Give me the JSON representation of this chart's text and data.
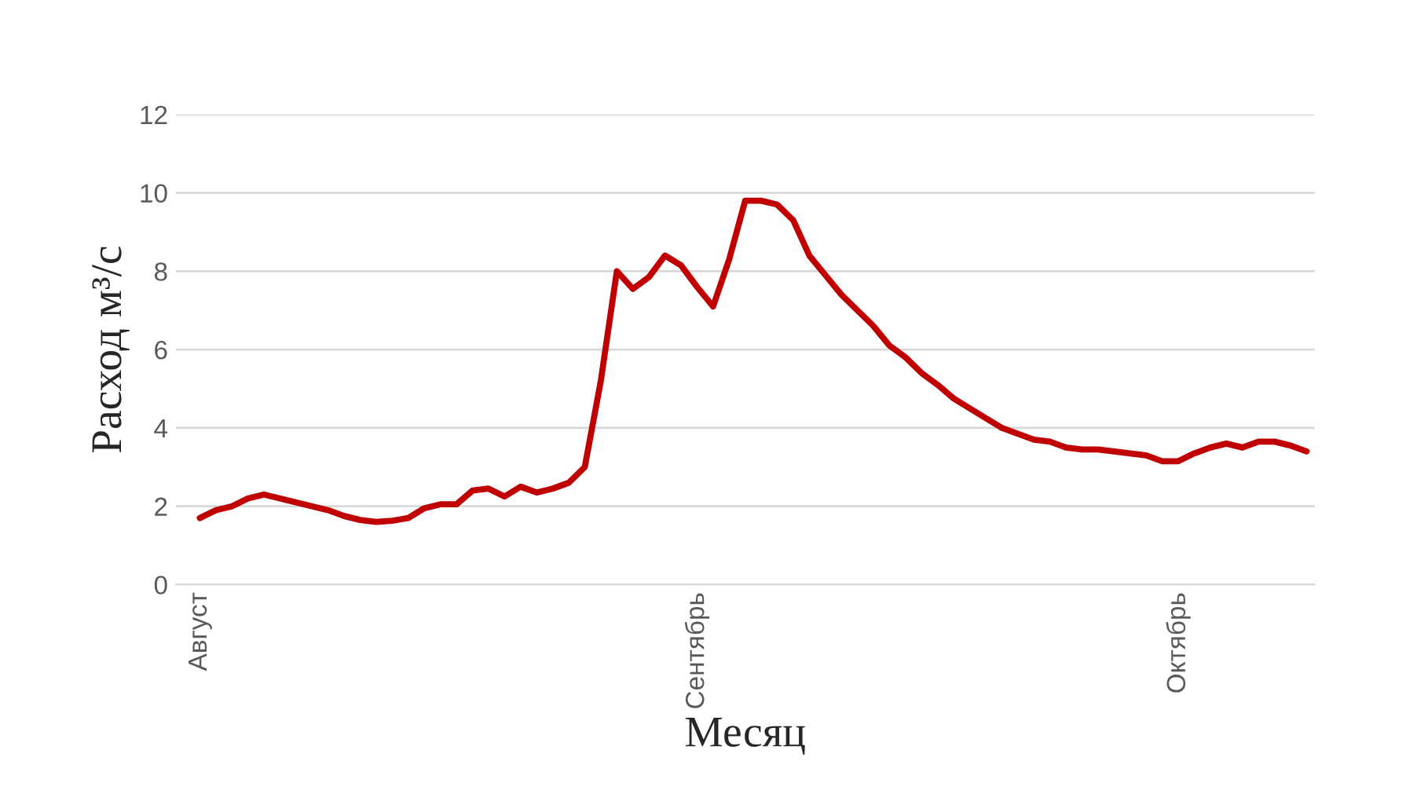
{
  "chart_data": {
    "type": "line",
    "xlabel": "Месяц",
    "ylabel": "Расход м³/с",
    "categories": [
      "Август",
      null,
      null,
      null,
      null,
      null,
      null,
      null,
      null,
      null,
      null,
      null,
      null,
      null,
      null,
      null,
      null,
      null,
      null,
      null,
      null,
      null,
      null,
      null,
      null,
      null,
      null,
      null,
      null,
      null,
      null,
      "Сентябрь",
      null,
      null,
      null,
      null,
      null,
      null,
      null,
      null,
      null,
      null,
      null,
      null,
      null,
      null,
      null,
      null,
      null,
      null,
      null,
      null,
      null,
      null,
      null,
      null,
      null,
      null,
      null,
      null,
      null,
      "Октябрь",
      null,
      null,
      null,
      null,
      null,
      null,
      null,
      null
    ],
    "series": [
      {
        "color": "#c00000",
        "values": [
          1.7,
          1.9,
          2.0,
          2.2,
          2.3,
          2.2,
          2.1,
          2.0,
          1.9,
          1.75,
          1.65,
          1.6,
          1.63,
          1.7,
          1.95,
          2.05,
          2.05,
          2.4,
          2.45,
          2.25,
          2.5,
          2.35,
          2.45,
          2.6,
          3.0,
          5.2,
          8.0,
          7.55,
          7.85,
          8.4,
          8.15,
          7.6,
          7.1,
          8.3,
          9.8,
          9.8,
          9.7,
          9.3,
          8.4,
          7.9,
          7.4,
          7.0,
          6.6,
          6.1,
          5.8,
          5.4,
          5.1,
          4.75,
          4.5,
          4.25,
          4.0,
          3.85,
          3.7,
          3.65,
          3.5,
          3.45,
          3.45,
          3.4,
          3.35,
          3.3,
          3.15,
          3.15,
          3.35,
          3.5,
          3.6,
          3.5,
          3.65,
          3.65,
          3.55,
          3.4
        ]
      }
    ],
    "ylim": [
      0,
      12
    ],
    "yticks": [
      0,
      2,
      4,
      6,
      8,
      10,
      12
    ],
    "grid": "y",
    "line_style": "solid"
  }
}
